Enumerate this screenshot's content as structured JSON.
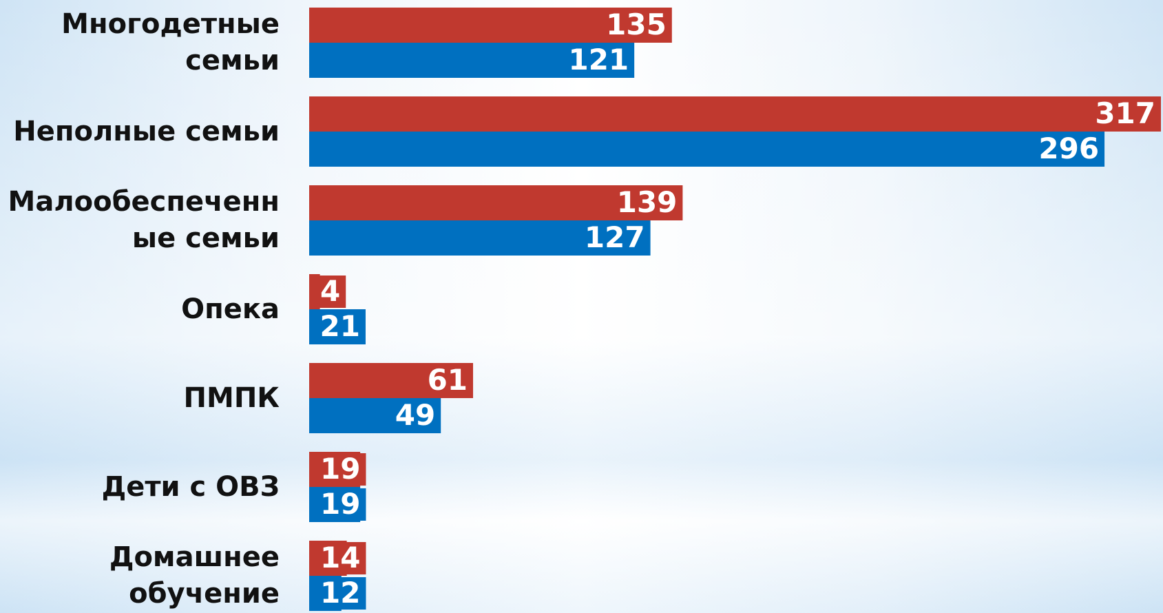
{
  "chart_data": {
    "type": "hbar",
    "categories": [
      "Многодетные\nсемьи",
      "Неполные семьи",
      "Малообеспеченн\nые семьи",
      "Опека",
      "ПМПК",
      "Дети с ОВЗ",
      "Домашнее\nобучение"
    ],
    "series": [
      {
        "color": "#c0392f",
        "values": [
          135,
          317,
          139,
          4,
          61,
          19,
          14
        ]
      },
      {
        "color": "#0070c0",
        "values": [
          121,
          296,
          127,
          21,
          49,
          19,
          12
        ]
      }
    ]
  }
}
